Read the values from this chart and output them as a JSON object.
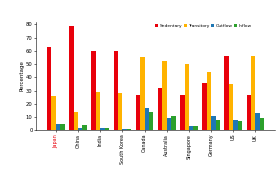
{
  "categories": [
    "Japan",
    "China",
    "India",
    "South Korea",
    "Canada",
    "Australia",
    "Singapore",
    "Germany",
    "US",
    "UK"
  ],
  "series": {
    "Sedentary": [
      63,
      79,
      60,
      60,
      27,
      32,
      27,
      36,
      56,
      27
    ],
    "Transitory": [
      26,
      14,
      29,
      28,
      55,
      52,
      50,
      44,
      35,
      56
    ],
    "Outflow": [
      5,
      2,
      2,
      1,
      17,
      9,
      3,
      11,
      8,
      13
    ],
    "Inflow": [
      5,
      4,
      2,
      1,
      14,
      11,
      3,
      8,
      7,
      9
    ]
  },
  "colors": {
    "Sedentary": "#e8000b",
    "Transitory": "#ffb300",
    "Outflow": "#1f77b4",
    "Inflow": "#2ca02c"
  },
  "ylabel": "Percentage",
  "ylim": [
    0,
    82
  ],
  "yticks": [
    0,
    10,
    20,
    30,
    40,
    50,
    60,
    70,
    80
  ],
  "legend_order": [
    "Sedentary",
    "Transitory",
    "Outflow",
    "Inflow"
  ],
  "japan_color": "#e8000b",
  "other_color": "#000000",
  "bg_color": "#ffffff"
}
